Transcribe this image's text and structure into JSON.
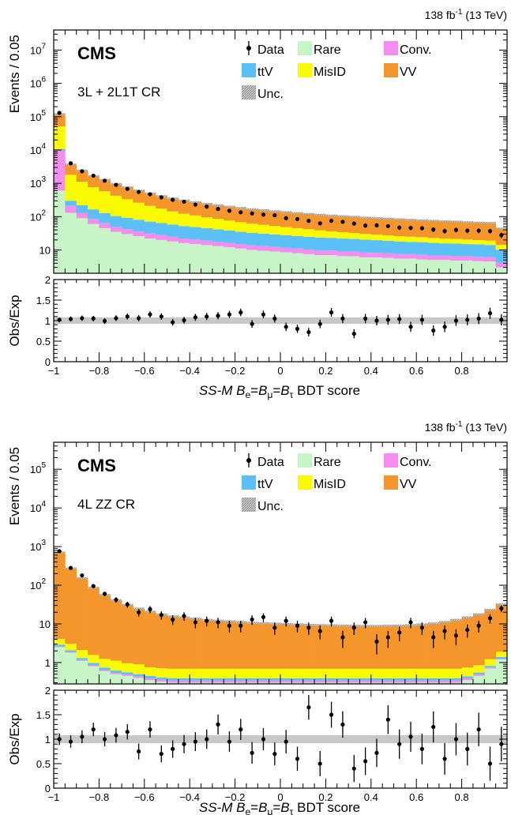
{
  "colors": {
    "Rare": "#c8f5c8",
    "Conv.": "#f58cf0",
    "ttV": "#5ac0f5",
    "MisID": "#fafa00",
    "VV": "#f5962d",
    "Unc.": "#b4b4b4",
    "Data": "#000000"
  },
  "chart_data": [
    {
      "type": "area",
      "stacked": true,
      "log_y": true,
      "experiment": "CMS",
      "region": "3L + 2L1T CR",
      "lumi": "138 fb",
      "lumi_sup": "-1",
      "energy": " (13 TeV)",
      "ylabel": "Events / 0.05",
      "xlabel_main": "SS-M",
      "xlabel_formula": "B",
      "xlabel_suffix": " BDT score",
      "ratio_label": "Obs/Exp",
      "xlim": [
        -1,
        1
      ],
      "ylim": [
        2,
        40000000
      ],
      "ratio_ylim": [
        0,
        2
      ],
      "x_ticks": [
        "−1",
        "−0.8",
        "−0.6",
        "−0.4",
        "−0.2",
        "0",
        "0.2",
        "0.4",
        "0.6",
        "0.8"
      ],
      "y_ticks": [
        "10",
        "10^2",
        "10^3",
        "10^4",
        "10^5",
        "10^6",
        "10^7"
      ],
      "ratio_ticks": [
        "0",
        "0.5",
        "1",
        "1.5",
        "2"
      ],
      "legend": [
        "Data",
        "Rare",
        "Conv.",
        "ttV",
        "MisID",
        "VV",
        "Unc."
      ],
      "bins": 40,
      "series": [
        {
          "name": "Rare",
          "values": [
            600,
            130,
            90,
            60,
            45,
            35,
            30,
            26,
            22,
            20,
            18,
            16,
            15,
            14,
            13,
            12,
            11,
            10,
            9.5,
            9,
            8.5,
            8,
            7.5,
            7,
            7,
            6.5,
            6.5,
            6,
            6,
            5.8,
            5.5,
            5.5,
            5.2,
            5,
            5,
            4.8,
            4.8,
            4.6,
            4.5,
            3
          ]
        },
        {
          "name": "Conv.",
          "values": [
            9000,
            80,
            40,
            25,
            18,
            14,
            12,
            10,
            9,
            8,
            7,
            6,
            5.5,
            5,
            4.5,
            4.2,
            4,
            3.7,
            3.5,
            3.3,
            3.1,
            3,
            2.8,
            2.7,
            2.6,
            2.5,
            2.4,
            2.3,
            2.2,
            2.1,
            2,
            2,
            1.9,
            1.8,
            1.8,
            1.7,
            1.7,
            1.6,
            1.6,
            1.2
          ]
        },
        {
          "name": "ttV",
          "values": [
            1000,
            90,
            90,
            80,
            65,
            55,
            50,
            45,
            40,
            36,
            33,
            30,
            28,
            26,
            24,
            22,
            20,
            19,
            18,
            17,
            16,
            15,
            14.5,
            14,
            13.5,
            13,
            12.5,
            12,
            11.5,
            11,
            10.5,
            10,
            10,
            9.5,
            9,
            9,
            8.5,
            8.5,
            8,
            6
          ]
        },
        {
          "name": "MisID",
          "values": [
            40000,
            1500,
            900,
            600,
            450,
            320,
            240,
            180,
            140,
            110,
            85,
            70,
            60,
            50,
            44,
            38,
            33,
            29,
            26,
            23,
            21,
            19,
            17,
            15,
            13,
            12,
            11,
            10,
            9,
            8.5,
            8,
            7.5,
            7,
            6.5,
            6,
            6,
            5.5,
            5,
            5,
            4
          ]
        },
        {
          "name": "VV",
          "values": [
            70000,
            1900,
            1300,
            900,
            700,
            540,
            430,
            350,
            290,
            240,
            210,
            185,
            165,
            150,
            135,
            125,
            115,
            107,
            100,
            94,
            89,
            84,
            80,
            76,
            73,
            70,
            67,
            64,
            62,
            60,
            58,
            56,
            54,
            53,
            51,
            50,
            48,
            47,
            46,
            30
          ]
        }
      ],
      "data": [
        130000,
        4000,
        2300,
        1700,
        1200,
        900,
        680,
        550,
        470,
        380,
        320,
        280,
        230,
        200,
        170,
        150,
        135,
        125,
        115,
        110,
        90,
        85,
        75,
        63,
        75,
        70,
        62,
        54,
        55,
        52,
        47,
        46,
        45,
        41,
        37,
        40,
        38,
        38,
        37,
        28
      ],
      "ratio": [
        1.02,
        1.04,
        1.06,
        1.05,
        0.99,
        1.06,
        1.1,
        1.06,
        1.15,
        1.1,
        0.96,
        1.01,
        1.08,
        1.1,
        1.12,
        1.15,
        1.2,
        0.92,
        1.15,
        1.05,
        0.85,
        0.8,
        0.72,
        0.92,
        1.2,
        1.05,
        0.68,
        1.05,
        1.0,
        1.02,
        1.04,
        0.85,
        1.02,
        0.76,
        0.85,
        1.0,
        1.02,
        1.05,
        1.18,
        1.02
      ]
    },
    {
      "type": "area",
      "stacked": true,
      "log_y": true,
      "experiment": "CMS",
      "region": "4L ZZ CR",
      "lumi": "138 fb",
      "lumi_sup": "-1",
      "energy": " (13 TeV)",
      "ylabel": "Events / 0.05",
      "xlabel_main": "SS-M",
      "xlabel_formula": "B",
      "xlabel_suffix": " BDT score",
      "ratio_label": "Obs/Exp",
      "xlim": [
        -1,
        1
      ],
      "ylim": [
        0.28,
        500000
      ],
      "ratio_ylim": [
        0,
        2
      ],
      "x_ticks": [
        "−1",
        "−0.8",
        "−0.6",
        "−0.4",
        "−0.2",
        "0",
        "0.2",
        "0.4",
        "0.6",
        "0.8"
      ],
      "y_ticks": [
        "1",
        "10",
        "10^2",
        "10^3",
        "10^4",
        "10^5"
      ],
      "ratio_ticks": [
        "0",
        "0.5",
        "1",
        "1.5",
        "2"
      ],
      "legend": [
        "Data",
        "Rare",
        "Conv.",
        "ttV",
        "MisID",
        "VV",
        "Unc."
      ],
      "bins": 40,
      "series": [
        {
          "name": "Rare",
          "values": [
            2.5,
            1.8,
            1.1,
            0.8,
            0.6,
            0.5,
            0.45,
            0.4,
            0.35,
            0.32,
            0.3,
            0.3,
            0.3,
            0.3,
            0.3,
            0.3,
            0.3,
            0.3,
            0.3,
            0.3,
            0.3,
            0.3,
            0.3,
            0.3,
            0.3,
            0.3,
            0.3,
            0.3,
            0.3,
            0.3,
            0.3,
            0.3,
            0.3,
            0.3,
            0.3,
            0.3,
            0.35,
            0.45,
            0.7,
            1.2
          ]
        },
        {
          "name": "Conv.",
          "values": [
            0.1,
            0.08,
            0.06,
            0.05,
            0.04,
            0.04,
            0.04,
            0.04,
            0.04,
            0.04,
            0.04,
            0.04,
            0.04,
            0.04,
            0.04,
            0.04,
            0.04,
            0.04,
            0.04,
            0.04,
            0.04,
            0.04,
            0.04,
            0.04,
            0.04,
            0.04,
            0.04,
            0.04,
            0.04,
            0.04,
            0.04,
            0.04,
            0.04,
            0.04,
            0.04,
            0.04,
            0.04,
            0.04,
            0.04,
            0.05
          ]
        },
        {
          "name": "ttV",
          "values": [
            0.3,
            0.2,
            0.15,
            0.12,
            0.1,
            0.08,
            0.07,
            0.06,
            0.06,
            0.05,
            0.05,
            0.05,
            0.05,
            0.05,
            0.05,
            0.05,
            0.05,
            0.05,
            0.05,
            0.05,
            0.05,
            0.05,
            0.05,
            0.05,
            0.05,
            0.05,
            0.05,
            0.05,
            0.05,
            0.05,
            0.05,
            0.05,
            0.05,
            0.05,
            0.05,
            0.05,
            0.05,
            0.06,
            0.08,
            0.15
          ]
        },
        {
          "name": "MisID",
          "values": [
            1.2,
            1.0,
            0.8,
            0.6,
            0.5,
            0.5,
            0.4,
            0.4,
            0.3,
            0.3,
            0.3,
            0.3,
            0.3,
            0.3,
            0.3,
            0.3,
            0.3,
            0.3,
            0.3,
            0.3,
            0.3,
            0.3,
            0.3,
            0.3,
            0.3,
            0.3,
            0.3,
            0.3,
            0.3,
            0.3,
            0.3,
            0.3,
            0.3,
            0.3,
            0.3,
            0.3,
            0.3,
            0.3,
            0.4,
            0.5
          ]
        },
        {
          "name": "VV",
          "values": [
            700,
            270,
            150,
            85,
            55,
            40,
            30,
            24,
            20,
            17,
            15,
            14,
            13,
            12,
            11.5,
            11,
            10.5,
            10,
            9.8,
            9.5,
            9.2,
            9,
            8.8,
            8.6,
            8.5,
            8.4,
            8.3,
            8.2,
            8.2,
            8.3,
            8.4,
            8.6,
            9,
            9.6,
            10.5,
            12,
            14,
            17,
            22,
            30
          ]
        }
      ],
      "data": [
        760,
        280,
        180,
        95,
        60,
        42,
        32,
        20,
        24,
        17,
        13,
        16,
        11,
        12,
        11,
        9,
        9,
        13,
        15,
        8,
        12,
        9,
        8,
        6.5,
        12,
        4.5,
        8,
        11,
        3.5,
        4.5,
        6,
        11,
        8,
        4.5,
        6.5,
        5,
        7,
        9,
        14,
        25
      ],
      "ratio": [
        1.0,
        0.95,
        1.05,
        1.2,
        1.0,
        1.08,
        1.15,
        0.75,
        1.2,
        0.7,
        0.8,
        0.9,
        0.95,
        1.0,
        1.3,
        0.95,
        1.2,
        0.72,
        1.0,
        0.7,
        0.95,
        0.6,
        1.65,
        0.5,
        1.5,
        1.3,
        0.4,
        0.55,
        0.72,
        1.4,
        0.9,
        1.05,
        0.8,
        1.25,
        0.6,
        1.0,
        0.8,
        1.2,
        0.5,
        0.9
      ]
    }
  ]
}
